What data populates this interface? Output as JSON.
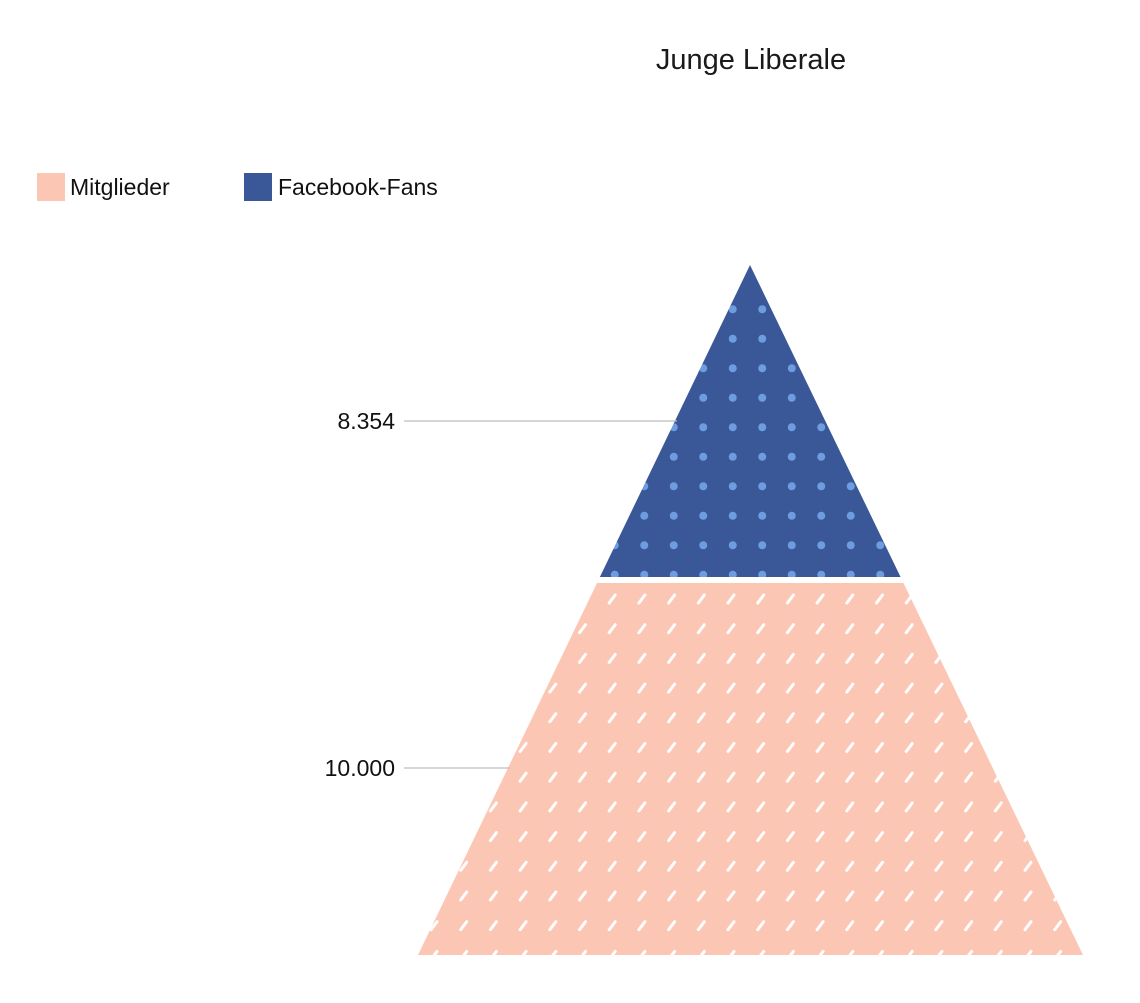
{
  "chart_data": {
    "type": "pyramid",
    "title": "Junge Liberale",
    "legend_position": "top-left",
    "series": [
      {
        "name": "Mitglieder",
        "value": 10000,
        "label": "10.000",
        "color": "#fcc6b4",
        "texture": "white-dashes"
      },
      {
        "name": "Facebook-Fans",
        "value": 8354,
        "label": "8.354",
        "color": "#3a5898",
        "texture": "light-dots"
      }
    ],
    "legend": [
      {
        "name": "Mitglieder",
        "color": "#fcc6b4"
      },
      {
        "name": "Facebook-Fans",
        "color": "#3a5898"
      }
    ]
  }
}
